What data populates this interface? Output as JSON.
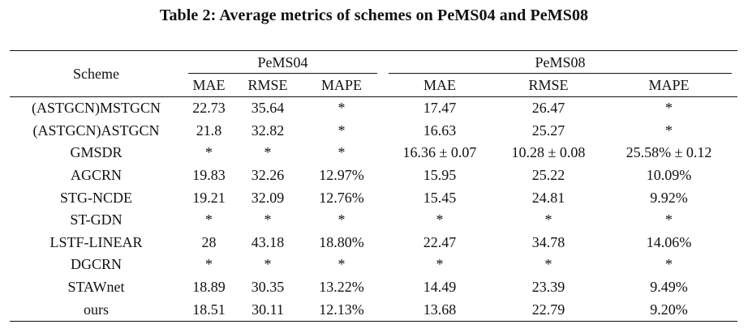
{
  "caption": "Table 2: Average metrics of schemes on PeMS04 and PeMS08",
  "header": {
    "scheme": "Scheme",
    "groups": [
      "PeMS04",
      "PeMS08"
    ],
    "metrics": [
      "MAE",
      "RMSE",
      "MAPE",
      "MAE",
      "RMSE",
      "MAPE"
    ]
  },
  "rows": [
    {
      "scheme": "(ASTGCN)MSTGCN",
      "cells": [
        "22.73",
        "35.64",
        "*",
        "17.47",
        "26.47",
        "*"
      ]
    },
    {
      "scheme": "(ASTGCN)ASTGCN",
      "cells": [
        "21.8",
        "32.82",
        "*",
        "16.63",
        "25.27",
        "*"
      ]
    },
    {
      "scheme": "GMSDR",
      "cells": [
        "*",
        "*",
        "*",
        "16.36 ± 0.07",
        "10.28 ± 0.08",
        "25.58% ± 0.12"
      ]
    },
    {
      "scheme": "AGCRN",
      "cells": [
        "19.83",
        "32.26",
        "12.97%",
        "15.95",
        "25.22",
        "10.09%"
      ]
    },
    {
      "scheme": "STG-NCDE",
      "cells": [
        "19.21",
        "32.09",
        "12.76%",
        "15.45",
        "24.81",
        "9.92%"
      ]
    },
    {
      "scheme": "ST-GDN",
      "cells": [
        "*",
        "*",
        "*",
        "*",
        "*",
        "*"
      ]
    },
    {
      "scheme": "LSTF-LINEAR",
      "cells": [
        "28",
        "43.18",
        "18.80%",
        "22.47",
        "34.78",
        "14.06%"
      ]
    },
    {
      "scheme": "DGCRN",
      "cells": [
        "*",
        "*",
        "*",
        "*",
        "*",
        "*"
      ]
    },
    {
      "scheme": "STAWnet",
      "cells": [
        "18.89",
        "30.35",
        "13.22%",
        "14.49",
        "23.39",
        "9.49%"
      ]
    },
    {
      "scheme": "ours",
      "cells": [
        "18.51",
        "30.11",
        "12.13%",
        "13.68",
        "22.79",
        "9.20%"
      ]
    }
  ]
}
